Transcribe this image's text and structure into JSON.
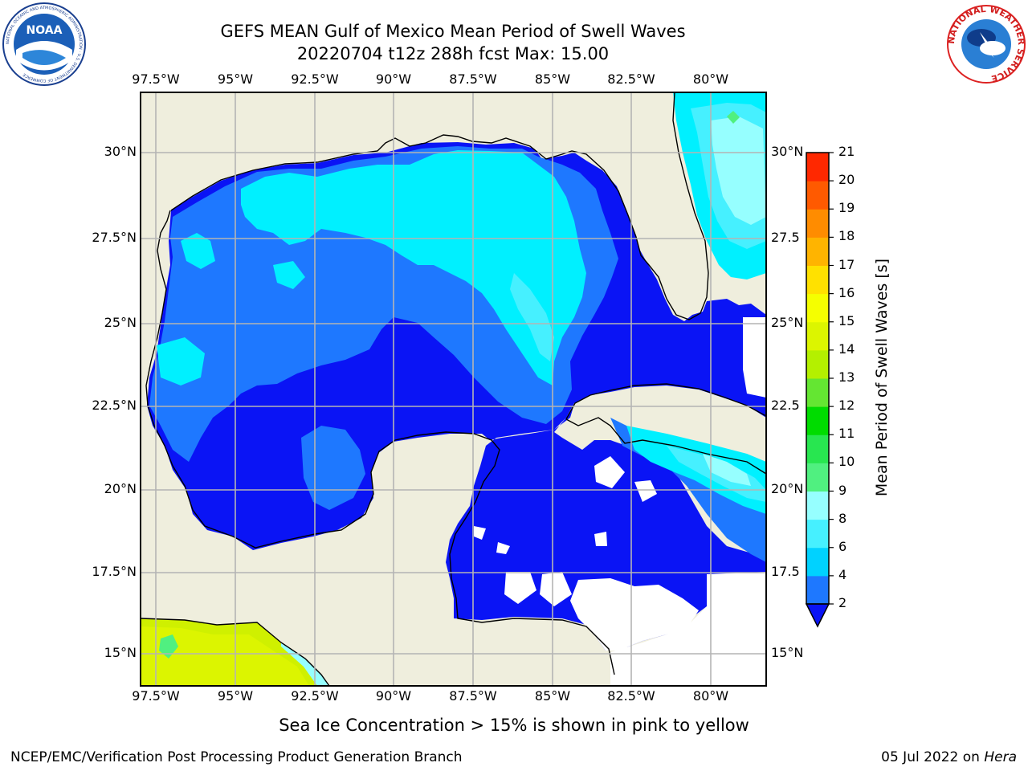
{
  "header": {
    "title_line1": "GEFS MEAN Gulf of Mexico Mean Period of Swell Waves",
    "title_line2": "20220704 t12z 288h fcst   Max: 15.00"
  },
  "map": {
    "lon_labels": [
      "97.5°W",
      "95°W",
      "92.5°W",
      "90°W",
      "87.5°W",
      "85°W",
      "82.5°W",
      "80°W"
    ],
    "lat_labels": [
      "30°N",
      "27.5°N",
      "25°N",
      "22.5°N",
      "20°N",
      "17.5°N",
      "15°N"
    ],
    "lat_labels_right": [
      "30°N",
      "27.5",
      "25°N",
      "22.5",
      "20°N",
      "17.5",
      "15°N"
    ],
    "land_color": "#efeedd",
    "ocean_undefined_color": "#ffffff"
  },
  "colorbar": {
    "label": "Mean Period of Swell Waves [s]",
    "ticks": [
      "2",
      "4",
      "6",
      "8",
      "9",
      "10",
      "11",
      "12",
      "13",
      "14",
      "15",
      "16",
      "17",
      "18",
      "19",
      "20",
      "21"
    ],
    "colors": [
      "#1e78ff",
      "#00d2ff",
      "#46f0ff",
      "#96ffff",
      "#50f080",
      "#28e650",
      "#00dc00",
      "#64e632",
      "#b4f000",
      "#dcf500",
      "#f5ff00",
      "#ffe100",
      "#ffb400",
      "#ff8c00",
      "#ff5a00",
      "#ff2800",
      "#ff0000"
    ],
    "under_color": "#0a14f5"
  },
  "footer": {
    "note": "Sea Ice Concentration > 15% is shown in pink to yellow",
    "credit": "NCEP/EMC/Verification Post Processing Product Generation Branch",
    "date": "05 Jul 2022 on ",
    "machine": "Hera"
  },
  "logos": {
    "left_text": "NOAA",
    "left_ring_text": "NATIONAL OCEANIC AND ATMOSPHERIC ADMINISTRATION · U.S. DEPARTMENT OF COMMERCE",
    "right_ring_text": "NATIONAL WEATHER SERVICE"
  }
}
